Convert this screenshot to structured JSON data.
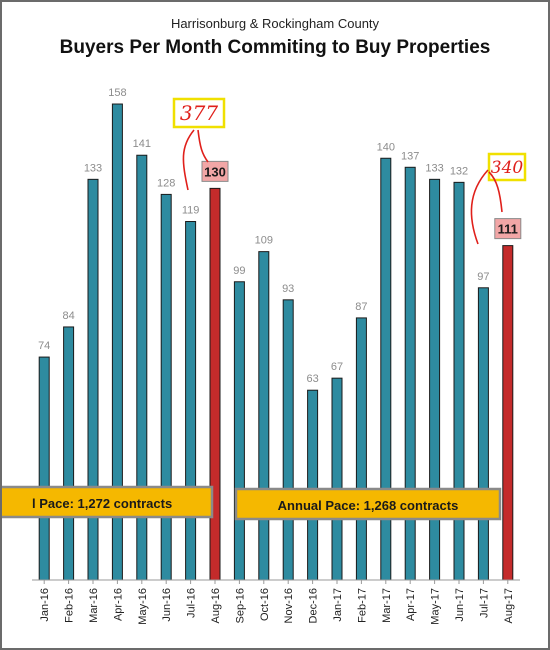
{
  "header": {
    "subtitle": "Harrisonburg & Rockingham County",
    "title": "Buyers Per Month Commiting to Buy Properties"
  },
  "chart_data": {
    "type": "bar",
    "title": "Buyers Per Month Commiting to Buy Properties",
    "subtitle": "Harrisonburg & Rockingham County",
    "xlabel": "",
    "ylabel": "",
    "categories": [
      "Jan-16",
      "Feb-16",
      "Mar-16",
      "Apr-16",
      "May-16",
      "Jun-16",
      "Jul-16",
      "Aug-16",
      "Sep-16",
      "Oct-16",
      "Nov-16",
      "Dec-16",
      "Jan-17",
      "Feb-17",
      "Mar-17",
      "Apr-17",
      "May-17",
      "Jun-17",
      "Jul-17",
      "Aug-17"
    ],
    "values": [
      74,
      84,
      133,
      158,
      141,
      128,
      119,
      130,
      99,
      109,
      93,
      63,
      67,
      87,
      140,
      137,
      133,
      132,
      97,
      111
    ],
    "highlighted": [
      "Aug-16",
      "Aug-17"
    ],
    "ylim": [
      0,
      160
    ],
    "grid": false,
    "colors": {
      "bar": "#2e8ba0",
      "highlight_bar": "#c42b2b",
      "highlight_label_bg": "#f2a6a6",
      "value_label": "#8c8c8c",
      "pace_box": "#f5b800",
      "handwriting": "#e0201b",
      "callout_border": "#f0e000"
    },
    "annotations": {
      "pace_2016": "l Pace: 1,272 contracts",
      "pace_2017": "Annual Pace: 1,268 contracts",
      "handwritten_2016": "377",
      "handwritten_2017": "340"
    }
  }
}
